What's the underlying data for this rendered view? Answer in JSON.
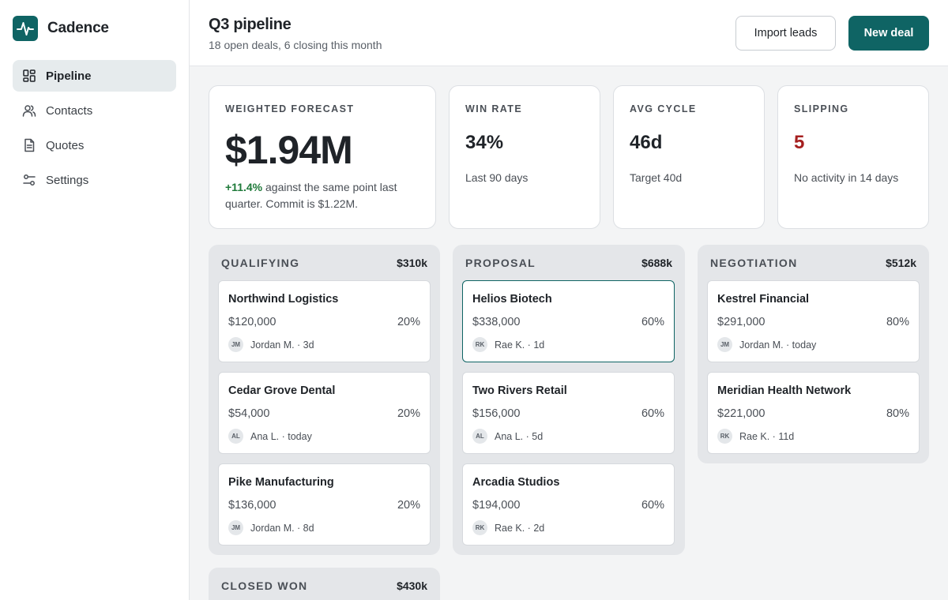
{
  "app": {
    "name": "Cadence"
  },
  "sidebar": {
    "items": [
      {
        "label": "Pipeline",
        "icon": "grid-icon",
        "active": true
      },
      {
        "label": "Contacts",
        "icon": "users-icon"
      },
      {
        "label": "Quotes",
        "icon": "document-icon"
      },
      {
        "label": "Settings",
        "icon": "sliders-icon"
      }
    ]
  },
  "header": {
    "title": "Q3 pipeline",
    "subtitle": "18 open deals, 6 closing this month",
    "import_label": "Import leads",
    "new_deal_label": "New deal"
  },
  "stats": {
    "forecast": {
      "label": "WEIGHTED FORECAST",
      "value": "$1.94M",
      "change": "+11.4%",
      "note": " against the same point last quarter. Commit is $1.22M."
    },
    "win_rate": {
      "label": "WIN RATE",
      "value": "34%",
      "note": "Last 90 days"
    },
    "avg_cycle": {
      "label": "AVG CYCLE",
      "value": "46d",
      "note": "Target 40d"
    },
    "slipping": {
      "label": "SLIPPING",
      "value": "5",
      "note": "No activity in 14 days"
    }
  },
  "columns": [
    {
      "title": "QUALIFYING",
      "total": "$310k",
      "deals": [
        {
          "name": "Northwind Logistics",
          "amount": "$120,000",
          "prob": "20%",
          "initials": "JM",
          "owner": "Jordan M. · 3d"
        },
        {
          "name": "Cedar Grove Dental",
          "amount": "$54,000",
          "prob": "20%",
          "initials": "AL",
          "owner": "Ana L. · today"
        },
        {
          "name": "Pike Manufacturing",
          "amount": "$136,000",
          "prob": "20%",
          "initials": "JM",
          "owner": "Jordan M. · 8d"
        }
      ]
    },
    {
      "title": "PROPOSAL",
      "total": "$688k",
      "deals": [
        {
          "name": "Helios Biotech",
          "amount": "$338,000",
          "prob": "60%",
          "initials": "RK",
          "owner": "Rae K. · 1d"
        },
        {
          "name": "Two Rivers Retail",
          "amount": "$156,000",
          "prob": "60%",
          "initials": "AL",
          "owner": "Ana L. · 5d"
        },
        {
          "name": "Arcadia Studios",
          "amount": "$194,000",
          "prob": "60%",
          "initials": "RK",
          "owner": "Rae K. · 2d"
        }
      ]
    },
    {
      "title": "NEGOTIATION",
      "total": "$512k",
      "deals": [
        {
          "name": "Kestrel Financial",
          "amount": "$291,000",
          "prob": "80%",
          "initials": "JM",
          "owner": "Jordan M. · today"
        },
        {
          "name": "Meridian Health Network",
          "amount": "$221,000",
          "prob": "80%",
          "initials": "RK",
          "owner": "Rae K. · 11d"
        }
      ]
    },
    {
      "title": "CLOSED WON",
      "total": "$430k",
      "deals": []
    }
  ],
  "colors": {
    "brand": "#0f6464",
    "positive": "#1f7a3a",
    "warning": "#a51f1f"
  }
}
